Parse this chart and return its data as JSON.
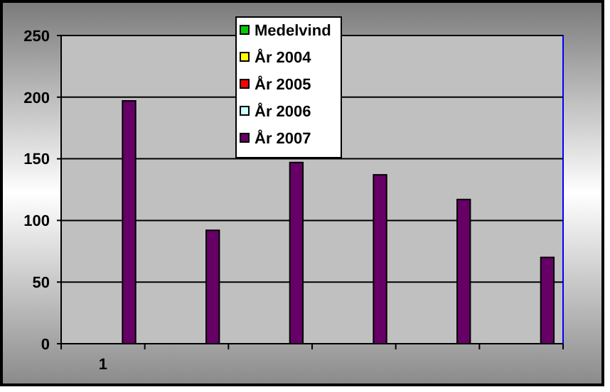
{
  "chart_data": {
    "type": "bar",
    "categories": [
      "1",
      null,
      null,
      null,
      null,
      null
    ],
    "series": [
      {
        "name": "Medelvind",
        "color": "#00cc00",
        "values": [
          null,
          null,
          null,
          null,
          null,
          null
        ]
      },
      {
        "name": "År 2004",
        "color": "#ffff00",
        "values": [
          null,
          null,
          null,
          null,
          null,
          null
        ]
      },
      {
        "name": "År 2005",
        "color": "#ff0000",
        "values": [
          null,
          null,
          null,
          null,
          null,
          null
        ]
      },
      {
        "name": "År 2006",
        "color": "#ccffff",
        "values": [
          null,
          null,
          null,
          null,
          null,
          null
        ]
      },
      {
        "name": "År 2007",
        "color": "#660066",
        "values": [
          197,
          92,
          147,
          137,
          117,
          70
        ]
      }
    ],
    "ylim": [
      0,
      250
    ],
    "yticks": [
      0,
      50,
      100,
      150,
      200,
      250
    ],
    "grid": "y",
    "legend": "top"
  }
}
